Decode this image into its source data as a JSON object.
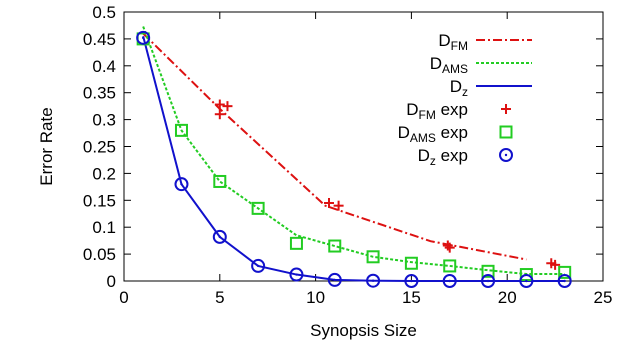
{
  "chart_data": {
    "type": "line",
    "xlabel": "Synopsis Size",
    "ylabel": "Error Rate",
    "xlim": [
      0,
      25
    ],
    "ylim": [
      0,
      0.5
    ],
    "x_ticks": [
      0,
      5,
      10,
      15,
      20,
      25
    ],
    "y_ticks": [
      0,
      0.05,
      0.1,
      0.15,
      0.2,
      0.25,
      0.3,
      0.35,
      0.4,
      0.45,
      0.5
    ],
    "grid": false,
    "legend_position": "top-right",
    "series": [
      {
        "key": "fm",
        "name": "D",
        "sub": "FM",
        "style": "dash-dot",
        "color": "#dd1111",
        "x": [
          1,
          5,
          10.5,
          16,
          21
        ],
        "y": [
          0.46,
          0.32,
          0.14,
          0.074,
          0.04
        ]
      },
      {
        "key": "ams",
        "name": "D",
        "sub": "AMS",
        "style": "dotted",
        "color": "#22cc22",
        "x": [
          1,
          3,
          5,
          7,
          9,
          11,
          13,
          15,
          17,
          19,
          21,
          23
        ],
        "y": [
          0.473,
          0.28,
          0.185,
          0.135,
          0.085,
          0.065,
          0.045,
          0.035,
          0.028,
          0.02,
          0.013,
          0.013
        ]
      },
      {
        "key": "z",
        "name": "D",
        "sub": "z",
        "style": "solid",
        "color": "#1111cc",
        "x": [
          1,
          3,
          5,
          7,
          9,
          11,
          13,
          15,
          17,
          19,
          21,
          23
        ],
        "y": [
          0.455,
          0.18,
          0.082,
          0.028,
          0.012,
          0.002,
          0.0005,
          0,
          0,
          0,
          0,
          0
        ]
      },
      {
        "key": "fm_exp",
        "name": "D",
        "sub": "FM",
        "suffix": " exp",
        "marker": "plus",
        "color": "#dd1111",
        "x": [
          5,
          5,
          5.4,
          10.7,
          11.2,
          16.9,
          17,
          22.3,
          22.5
        ],
        "y": [
          0.31,
          0.328,
          0.325,
          0.145,
          0.14,
          0.066,
          0.062,
          0.033,
          0.03
        ]
      },
      {
        "key": "ams_exp",
        "name": "D",
        "sub": "AMS",
        "suffix": " exp",
        "marker": "square",
        "color": "#22cc22",
        "x": [
          1,
          3,
          5,
          7,
          9,
          11,
          13,
          15,
          17,
          19,
          21,
          23
        ],
        "y": [
          0.45,
          0.28,
          0.185,
          0.135,
          0.07,
          0.065,
          0.045,
          0.033,
          0.028,
          0.018,
          0.012,
          0.016
        ]
      },
      {
        "key": "z_exp",
        "name": "D",
        "sub": "z",
        "suffix": " exp",
        "marker": "circle",
        "color": "#1111cc",
        "x": [
          1,
          3,
          5,
          7,
          9,
          11,
          13,
          15,
          17,
          19,
          21,
          23
        ],
        "y": [
          0.452,
          0.18,
          0.082,
          0.028,
          0.012,
          0.002,
          0.0005,
          0,
          0,
          0,
          0,
          0
        ]
      }
    ]
  }
}
